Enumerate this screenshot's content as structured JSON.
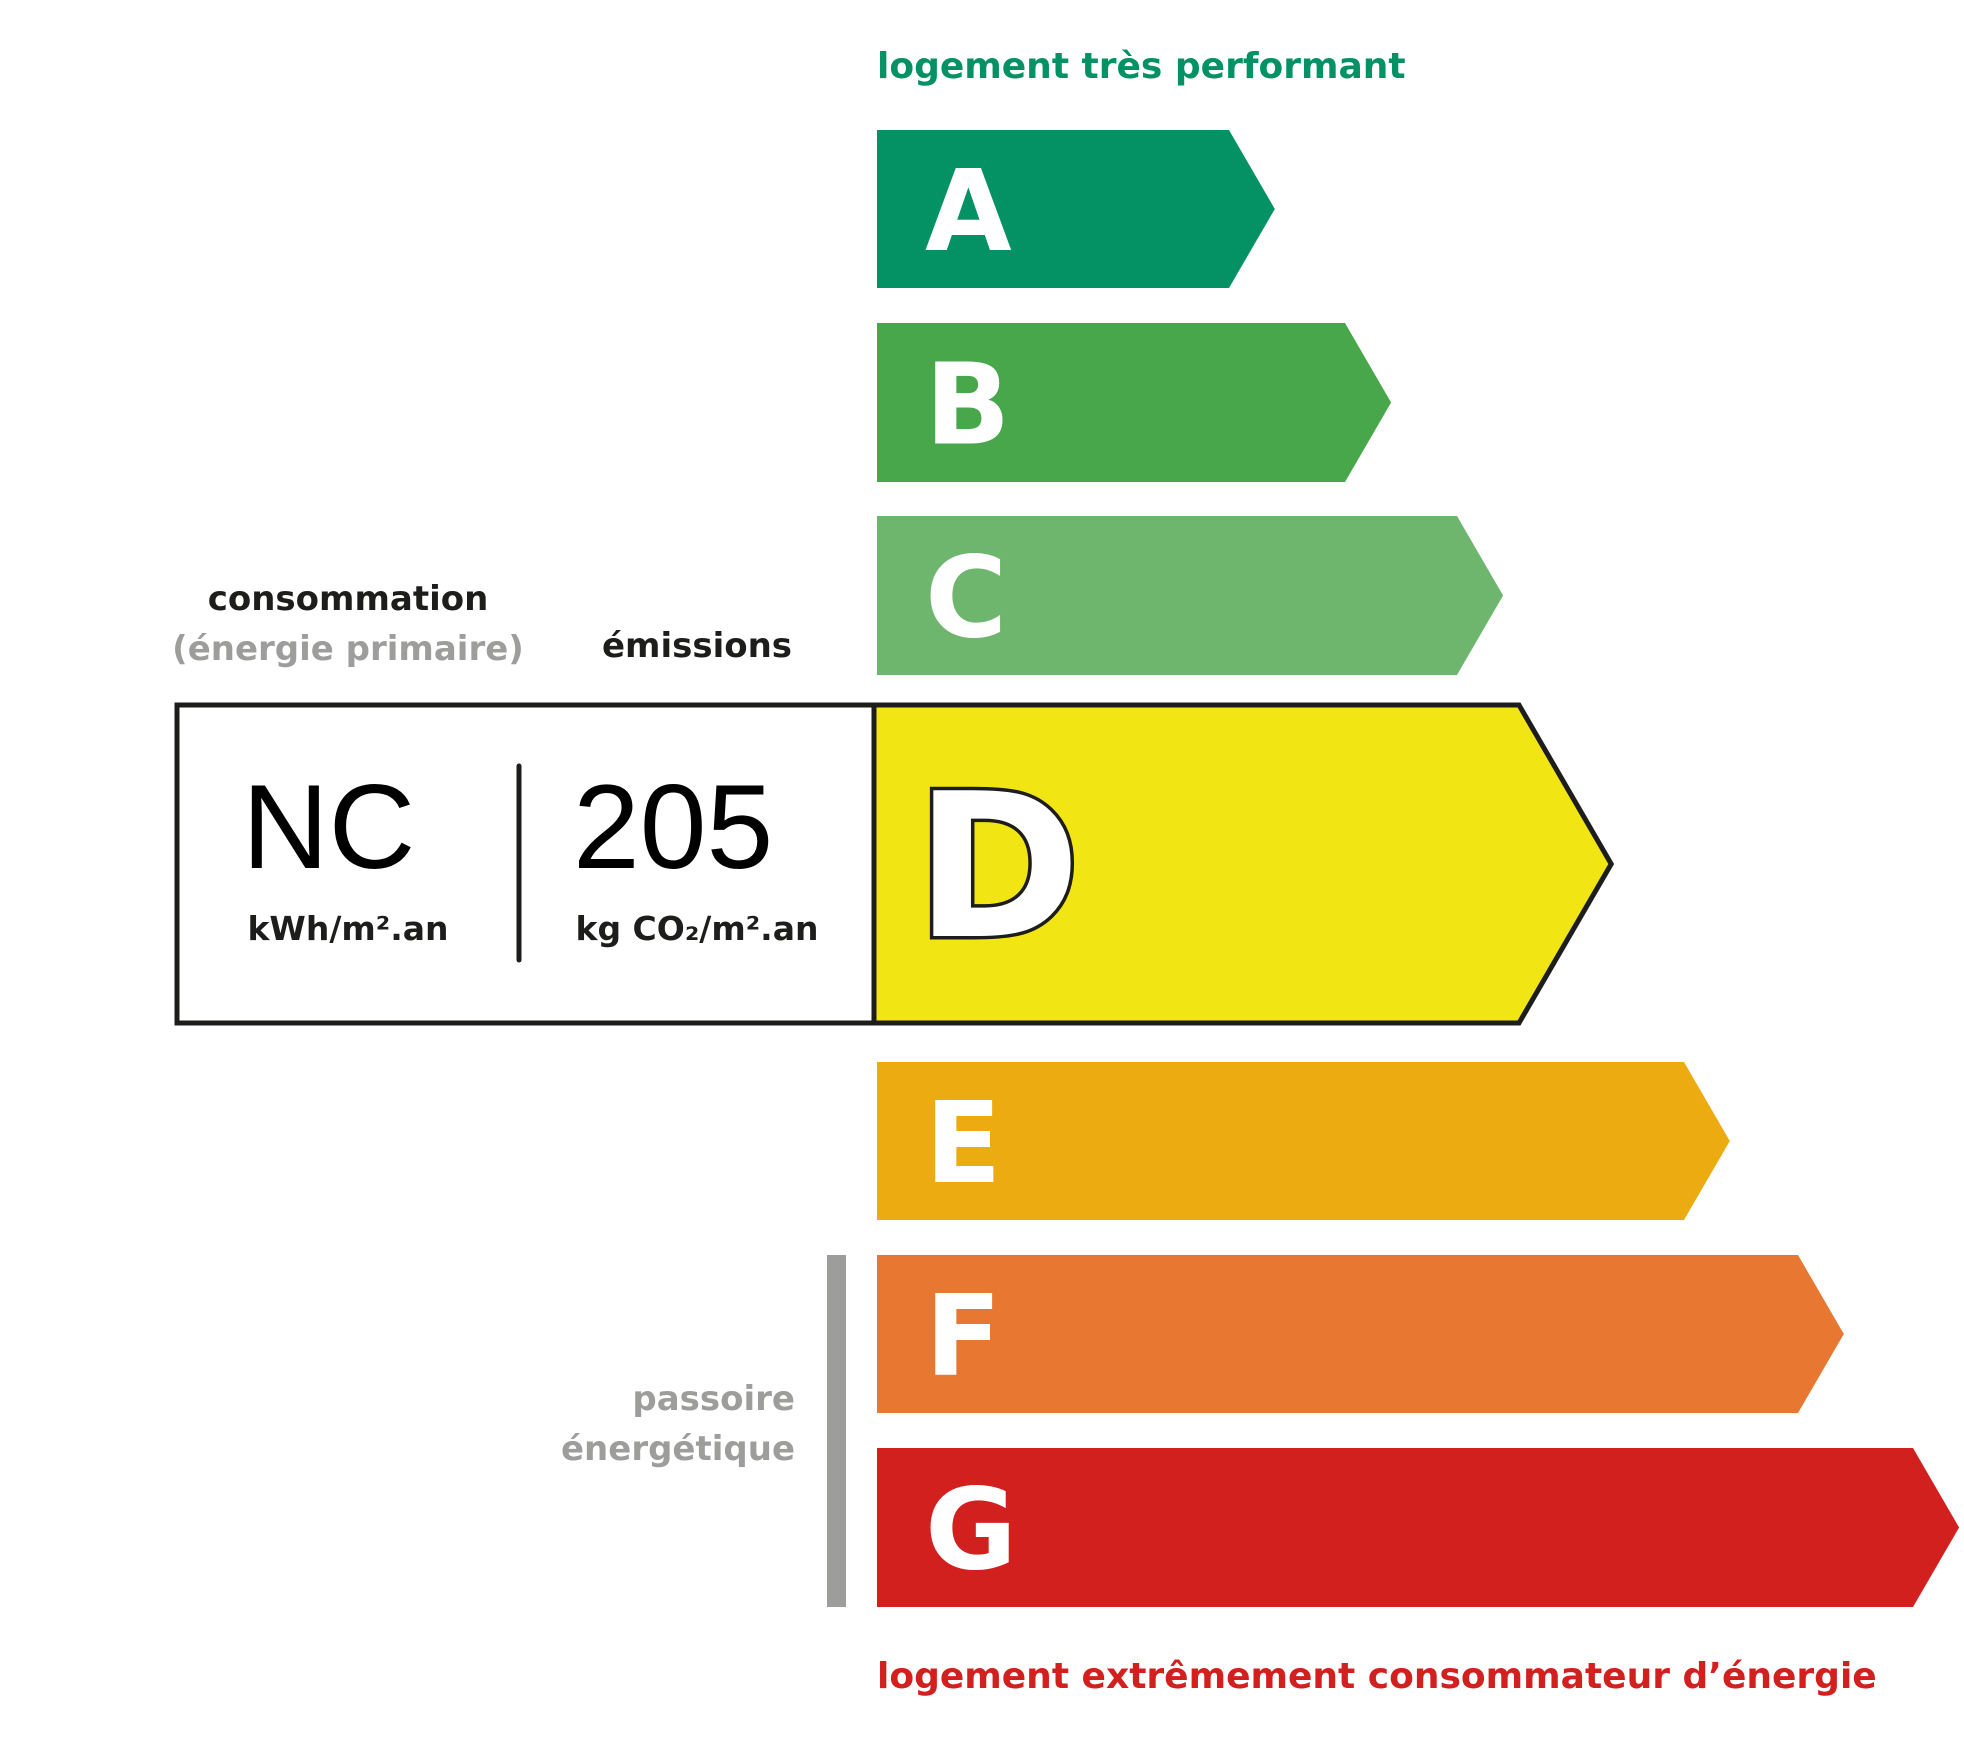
{
  "top_label": "logement très performant",
  "bottom_label": "logement extrêmement consommateur d’énergie",
  "consumption": {
    "title": "consommation",
    "subtitle": "(énergie primaire)",
    "value": "NC",
    "unit": "kWh/m².an"
  },
  "emissions": {
    "title": "émissions",
    "value": "205",
    "unit": "kg CO₂/m².an"
  },
  "passoire": {
    "line1": "passoire",
    "line2": "énergétique"
  },
  "current_class": "D",
  "classes": [
    {
      "letter": "A",
      "color": "#049163"
    },
    {
      "letter": "B",
      "color": "#48a74b"
    },
    {
      "letter": "C",
      "color": "#6eb66d"
    },
    {
      "letter": "D",
      "color": "#f1e514"
    },
    {
      "letter": "E",
      "color": "#ecab10"
    },
    {
      "letter": "F",
      "color": "#e77731"
    },
    {
      "letter": "G",
      "color": "#d2201f"
    }
  ],
  "colors": {
    "top_label": "#049163",
    "bottom_label": "#d2201f",
    "grey": "#9d9d9c",
    "outline": "#1d1d1b"
  }
}
